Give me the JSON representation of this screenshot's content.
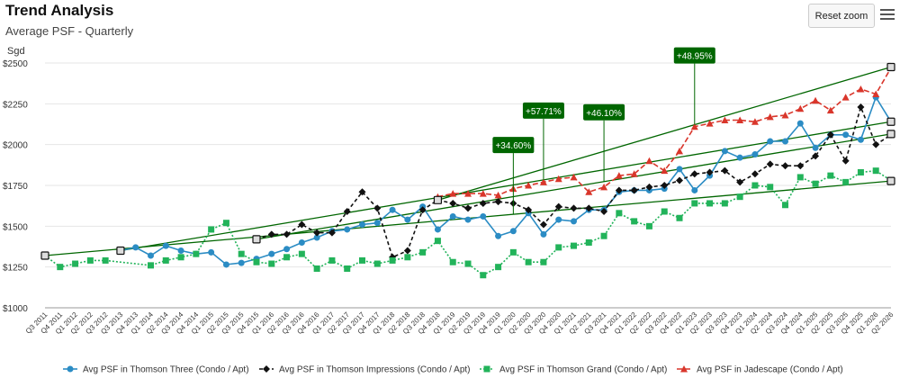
{
  "header": {
    "title": "Trend Analysis",
    "subtitle": "Average PSF - Quarterly",
    "reset_label": "Reset zoom",
    "menu_icon": "hamburger-menu-icon"
  },
  "chart_data": {
    "type": "line",
    "ylabel": "Sgd",
    "ylim": [
      1000,
      2500
    ],
    "yticks": [
      1000,
      1250,
      1500,
      1750,
      2000,
      2250,
      2500
    ],
    "ytick_labels": [
      "$1000",
      "$1250",
      "$1500",
      "$1750",
      "$2000",
      "$2250",
      "$2500"
    ],
    "grid": true,
    "legend_position": "bottom",
    "categories": [
      "Q3 2011",
      "Q4 2011",
      "Q1 2012",
      "Q2 2012",
      "Q3 2012",
      "Q3 2013",
      "Q4 2013",
      "Q1 2014",
      "Q2 2014",
      "Q3 2014",
      "Q4 2014",
      "Q1 2015",
      "Q2 2015",
      "Q3 2015",
      "Q4 2015",
      "Q1 2016",
      "Q2 2016",
      "Q3 2016",
      "Q4 2016",
      "Q1 2017",
      "Q2 2017",
      "Q3 2017",
      "Q4 2017",
      "Q1 2018",
      "Q2 2018",
      "Q3 2018",
      "Q4 2018",
      "Q1 2019",
      "Q2 2019",
      "Q3 2019",
      "Q4 2019",
      "Q1 2020",
      "Q2 2020",
      "Q3 2020",
      "Q4 2020",
      "Q1 2021",
      "Q2 2021",
      "Q3 2021",
      "Q4 2021",
      "Q1 2022",
      "Q2 2022",
      "Q3 2022",
      "Q4 2022",
      "Q1 2023",
      "Q2 2023",
      "Q3 2023",
      "Q4 2023",
      "Q1 2024",
      "Q2 2024",
      "Q3 2024",
      "Q4 2024",
      "Q1 2025",
      "Q2 2025",
      "Q3 2025",
      "Q4 2025",
      "Q1 2026",
      "Q2 2026"
    ],
    "series": [
      {
        "name": "Avg PSF in Thomson Three (Condo / Apt)",
        "color": "#2b8cc4",
        "marker": "circle",
        "dash": "solid",
        "values": [
          null,
          null,
          null,
          null,
          null,
          1350,
          1370,
          1320,
          1380,
          1350,
          1330,
          1340,
          1265,
          1275,
          1300,
          1330,
          1360,
          1400,
          1430,
          1470,
          1480,
          1510,
          1520,
          1600,
          1540,
          1620,
          1480,
          1560,
          1540,
          1560,
          1440,
          1470,
          1580,
          1450,
          1540,
          1530,
          1600,
          1600,
          1710,
          1720,
          1720,
          1730,
          1850,
          1720,
          1810,
          1960,
          1920,
          1940,
          2020,
          2020,
          2130,
          1980,
          2060,
          2060,
          2030,
          2290,
          2140
        ]
      },
      {
        "name": "Avg PSF in Thomson Impressions (Condo / Apt)",
        "color": "#111111",
        "marker": "diamond",
        "dash": "4,3",
        "values": [
          null,
          null,
          null,
          null,
          null,
          null,
          null,
          null,
          null,
          null,
          null,
          null,
          null,
          null,
          1420,
          1450,
          1450,
          1510,
          1460,
          1460,
          1590,
          1710,
          1610,
          1310,
          1350,
          1600,
          1660,
          1640,
          1610,
          1640,
          1650,
          1640,
          1600,
          1510,
          1620,
          1610,
          1610,
          1590,
          1720,
          1720,
          1740,
          1750,
          1780,
          1820,
          1830,
          1840,
          1770,
          1820,
          1880,
          1870,
          1870,
          1930,
          2060,
          1900,
          2230,
          2000,
          2060
        ]
      },
      {
        "name": "Avg PSF in Thomson Grand (Condo / Apt)",
        "color": "#22b35a",
        "marker": "square",
        "dash": "2,2",
        "values": [
          1320,
          1250,
          1270,
          1290,
          1290,
          null,
          null,
          1260,
          1290,
          1310,
          1330,
          1480,
          1520,
          1330,
          1280,
          1270,
          1310,
          1330,
          1240,
          1290,
          1240,
          1290,
          1270,
          1290,
          1310,
          1340,
          1410,
          1280,
          1270,
          1200,
          1250,
          1340,
          1280,
          1280,
          1370,
          1380,
          1400,
          1440,
          1580,
          1530,
          1500,
          1590,
          1550,
          1640,
          1640,
          1640,
          1680,
          1750,
          1740,
          1630,
          1800,
          1760,
          1810,
          1770,
          1830,
          1840,
          1780
        ]
      },
      {
        "name": "Avg PSF in Jadescape (Condo / Apt)",
        "color": "#d9362b",
        "marker": "triangle",
        "dash": "6,3",
        "values": [
          null,
          null,
          null,
          null,
          null,
          null,
          null,
          null,
          null,
          null,
          null,
          null,
          null,
          null,
          null,
          null,
          null,
          null,
          null,
          null,
          null,
          null,
          null,
          null,
          null,
          null,
          1680,
          1700,
          1700,
          1700,
          1690,
          1730,
          1750,
          1770,
          1790,
          1800,
          1710,
          1740,
          1810,
          1820,
          1900,
          1840,
          1960,
          2110,
          2130,
          2150,
          2150,
          2140,
          2170,
          2180,
          2220,
          2270,
          2210,
          2290,
          2340,
          2310,
          2470
        ]
      }
    ],
    "trendlines": [
      {
        "label": "+34.60%",
        "color": "#006600",
        "from": [
          0,
          1320
        ],
        "to": [
          56,
          1777
        ]
      },
      {
        "label": "+57.71%",
        "color": "#006600",
        "from": [
          5,
          1350
        ],
        "to": [
          56,
          2140
        ]
      },
      {
        "label": "+46.10%",
        "color": "#006600",
        "from": [
          14,
          1420
        ],
        "to": [
          56,
          2065
        ]
      },
      {
        "label": "+48.95%",
        "color": "#006600",
        "from": [
          26,
          1660
        ],
        "to": [
          56,
          2475
        ]
      }
    ]
  }
}
